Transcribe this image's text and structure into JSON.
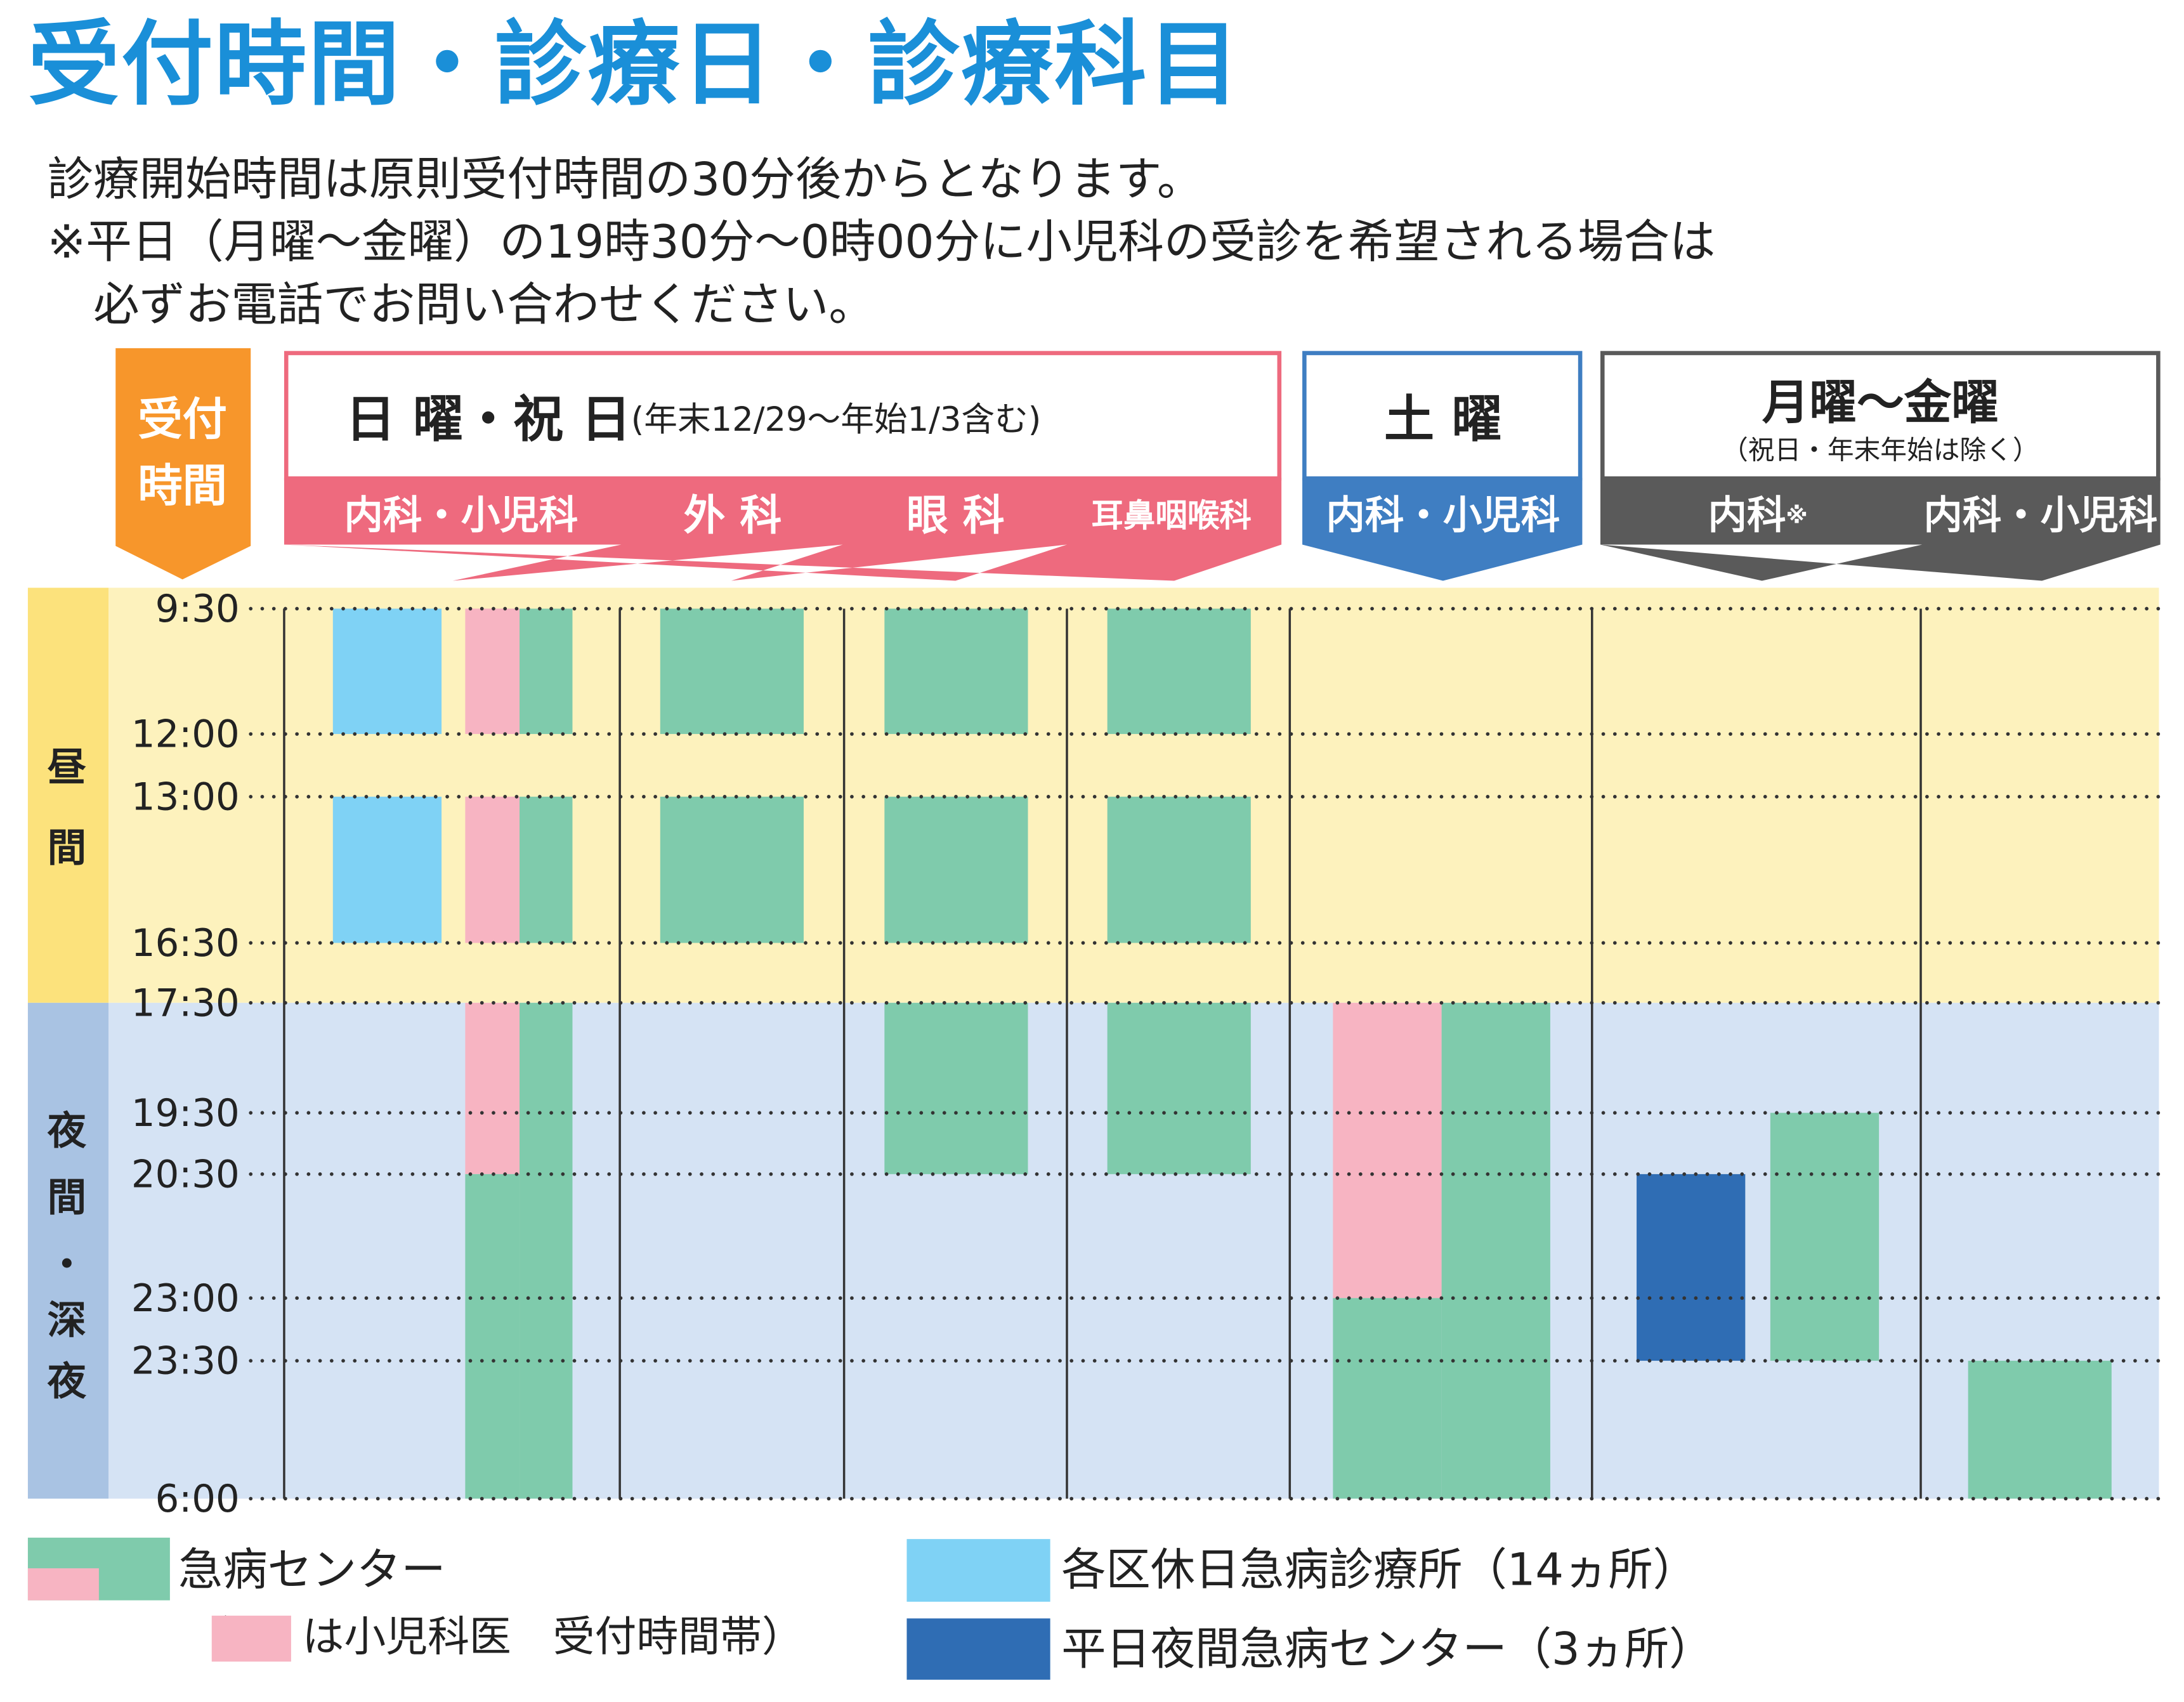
{
  "title": "受付時間・診療日・診療科目",
  "intro": [
    "診療開始時間は原則受付時間の30分後からとなります。",
    "※平日（月曜～金曜）の19時30分～0時00分に小児科の受診を希望される場合は",
    "　必ずお電話でお問い合わせください。"
  ],
  "colors": {
    "day_band": "#fdf2bd",
    "night_band": "#d5e3f4",
    "day_label": "#fce27c",
    "night_label": "#a9c3e3",
    "reception": "#f7962b",
    "sunday": "#ee6a7e",
    "saturday": "#3f7ec2",
    "weekday": "#5a5a5a",
    "emergency_center": "#7fcbac",
    "pediatric": "#f7b4c2",
    "ward_clinic": "#7fd2f5",
    "weekday_night_center": "#2f6db4"
  },
  "reception_header": "受付\n時間",
  "groups": [
    {
      "id": "sunday",
      "title": "日 曜・祝 日",
      "subtitle": "(年末12/29～年始1/3含む)"
    },
    {
      "id": "saturday",
      "title": "土 曜",
      "subtitle": ""
    },
    {
      "id": "weekday",
      "title": "月曜～金曜",
      "subtitle": "（祝日・年末年始は除く）"
    }
  ],
  "columns": [
    {
      "group": "sunday",
      "label": "内科・小児科"
    },
    {
      "group": "sunday",
      "label": "外 科"
    },
    {
      "group": "sunday",
      "label": "眼 科"
    },
    {
      "group": "sunday",
      "label": "耳鼻咽喉科"
    },
    {
      "group": "saturday",
      "label": "内科・小児科"
    },
    {
      "group": "weekday",
      "label": "内科",
      "mark": "※"
    },
    {
      "group": "weekday",
      "label": "内科・小児科"
    }
  ],
  "period_labels": {
    "day": "昼間",
    "night": "夜間・深夜"
  },
  "legend": {
    "emergency_center": "急病センター",
    "pediatric_note_open": "（",
    "pediatric_note": "は小児科医　受付時間帯）",
    "pediatric_note_close": "）",
    "ward_clinic": "各区休日急病診療所（14ヵ所）",
    "weekday_night_center": "平日夜間急病センター（3ヵ所）"
  },
  "chart_data": {
    "type": "timeline",
    "time_axis": {
      "ticks": [
        "9:30",
        "12:00",
        "13:00",
        "16:30",
        "17:30",
        "19:30",
        "20:30",
        "23:00",
        "23:30",
        "6:00"
      ],
      "day_period": [
        "9:30",
        "17:30"
      ],
      "night_period": [
        "17:30",
        "6:00"
      ]
    },
    "legend_series": [
      {
        "key": "emergency_center",
        "color": "#7fcbac"
      },
      {
        "key": "pediatric",
        "color": "#f7b4c2"
      },
      {
        "key": "ward_clinic",
        "color": "#7fd2f5"
      },
      {
        "key": "weekday_night_center",
        "color": "#2f6db4"
      }
    ],
    "bars": [
      {
        "column": 0,
        "lane": 0,
        "series": "ward_clinic",
        "start": "9:30",
        "end": "12:00"
      },
      {
        "column": 0,
        "lane": 0,
        "series": "ward_clinic",
        "start": "13:00",
        "end": "16:30"
      },
      {
        "column": 0,
        "lane": 1,
        "series": "pediatric",
        "start": "9:30",
        "end": "12:00"
      },
      {
        "column": 0,
        "lane": 1,
        "series": "pediatric",
        "start": "13:00",
        "end": "16:30"
      },
      {
        "column": 0,
        "lane": 1,
        "series": "pediatric",
        "start": "17:30",
        "end": "20:30"
      },
      {
        "column": 0,
        "lane": 1,
        "series": "emergency_center",
        "start": "20:30",
        "end": "6:00"
      },
      {
        "column": 0,
        "lane": 2,
        "series": "emergency_center",
        "start": "9:30",
        "end": "12:00"
      },
      {
        "column": 0,
        "lane": 2,
        "series": "emergency_center",
        "start": "13:00",
        "end": "16:30"
      },
      {
        "column": 0,
        "lane": 2,
        "series": "emergency_center",
        "start": "17:30",
        "end": "6:00"
      },
      {
        "column": 1,
        "lane": 0,
        "series": "emergency_center",
        "start": "9:30",
        "end": "12:00"
      },
      {
        "column": 1,
        "lane": 0,
        "series": "emergency_center",
        "start": "13:00",
        "end": "16:30"
      },
      {
        "column": 2,
        "lane": 0,
        "series": "emergency_center",
        "start": "9:30",
        "end": "12:00"
      },
      {
        "column": 2,
        "lane": 0,
        "series": "emergency_center",
        "start": "13:00",
        "end": "16:30"
      },
      {
        "column": 2,
        "lane": 0,
        "series": "emergency_center",
        "start": "17:30",
        "end": "20:30"
      },
      {
        "column": 3,
        "lane": 0,
        "series": "emergency_center",
        "start": "9:30",
        "end": "12:00"
      },
      {
        "column": 3,
        "lane": 0,
        "series": "emergency_center",
        "start": "13:00",
        "end": "16:30"
      },
      {
        "column": 3,
        "lane": 0,
        "series": "emergency_center",
        "start": "17:30",
        "end": "20:30"
      },
      {
        "column": 4,
        "lane": 0,
        "series": "pediatric",
        "start": "17:30",
        "end": "23:00"
      },
      {
        "column": 4,
        "lane": 0,
        "series": "emergency_center",
        "start": "23:00",
        "end": "6:00"
      },
      {
        "column": 4,
        "lane": 1,
        "series": "emergency_center",
        "start": "17:30",
        "end": "6:00"
      },
      {
        "column": 5,
        "lane": 0,
        "series": "weekday_night_center",
        "start": "20:30",
        "end": "23:30"
      },
      {
        "column": 5,
        "lane": 1,
        "series": "emergency_center",
        "start": "19:30",
        "end": "23:30"
      },
      {
        "column": 6,
        "lane": 0,
        "series": "emergency_center",
        "start": "23:30",
        "end": "6:00"
      }
    ]
  }
}
